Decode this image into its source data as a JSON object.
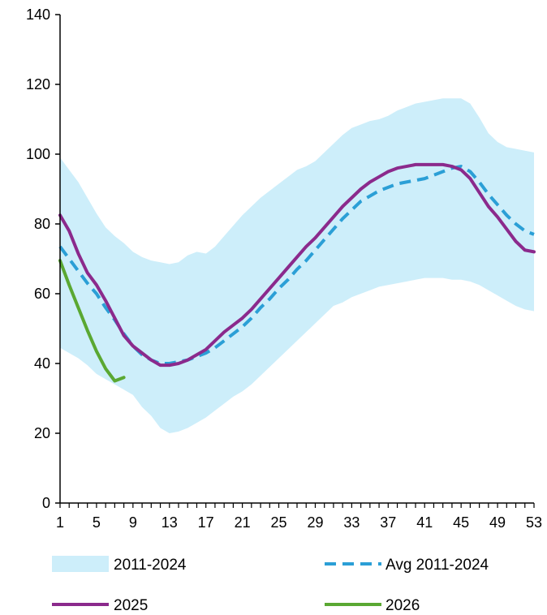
{
  "chart_data": {
    "type": "line",
    "title": "",
    "xlabel": "",
    "ylabel": "",
    "xlim": [
      1,
      53
    ],
    "ylim": [
      0,
      140
    ],
    "x_ticks": [
      "1",
      "5",
      "9",
      "13",
      "17",
      "21",
      "25",
      "29",
      "33",
      "37",
      "41",
      "45",
      "49",
      "53"
    ],
    "y_ticks": [
      "0",
      "20",
      "40",
      "60",
      "80",
      "100",
      "120",
      "140"
    ],
    "grid": false,
    "legend_position": "bottom",
    "band": {
      "name": "2011-2024",
      "color": "#cdeefa",
      "x": [
        1,
        2,
        3,
        4,
        5,
        6,
        7,
        8,
        9,
        10,
        11,
        12,
        13,
        14,
        15,
        16,
        17,
        18,
        19,
        20,
        21,
        22,
        23,
        24,
        25,
        26,
        27,
        28,
        29,
        30,
        31,
        32,
        33,
        34,
        35,
        36,
        37,
        38,
        39,
        40,
        41,
        42,
        43,
        44,
        45,
        46,
        47,
        48,
        49,
        50,
        51,
        52,
        53
      ],
      "upper": [
        99,
        95.5,
        92,
        87.5,
        83,
        79,
        76.5,
        74.5,
        72,
        70.5,
        69.5,
        69,
        68.5,
        69,
        71,
        72,
        71.5,
        73.5,
        76.5,
        79.5,
        82.5,
        85,
        87.5,
        89.5,
        91.5,
        93.5,
        95.5,
        96.5,
        98,
        100.5,
        103,
        105.5,
        107.5,
        108.5,
        109.5,
        110,
        111,
        112.5,
        113.5,
        114.5,
        115,
        115.5,
        116,
        116,
        116,
        114.5,
        110.5,
        106,
        103.5,
        102,
        101.5,
        101,
        100.5
      ],
      "lower": [
        44.5,
        43,
        41.5,
        39.5,
        37,
        35.5,
        34,
        32.5,
        31,
        27.5,
        25,
        21.5,
        20,
        20.5,
        21.5,
        23,
        24.5,
        26.5,
        28.5,
        30.5,
        32,
        34,
        36.5,
        39,
        41.5,
        44,
        46.5,
        49,
        51.5,
        54,
        56.5,
        57.5,
        59,
        60,
        61,
        62,
        62.5,
        63,
        63.5,
        64,
        64.5,
        64.5,
        64.5,
        64,
        64,
        63.5,
        62.5,
        61,
        59.5,
        58,
        56.5,
        55.5,
        55
      ]
    },
    "series": [
      {
        "name": "Avg 2011-2024",
        "color": "#2b9fd6",
        "style": "dashed",
        "x": [
          1,
          2,
          3,
          4,
          5,
          6,
          7,
          8,
          9,
          10,
          11,
          12,
          13,
          14,
          15,
          16,
          17,
          18,
          19,
          20,
          21,
          22,
          23,
          24,
          25,
          26,
          27,
          28,
          29,
          30,
          31,
          32,
          33,
          34,
          35,
          36,
          37,
          38,
          39,
          40,
          41,
          42,
          43,
          44,
          45,
          46,
          47,
          48,
          49,
          50,
          51,
          52,
          53
        ],
        "values": [
          73.5,
          70,
          66.5,
          63,
          60,
          56,
          52.5,
          48.5,
          45,
          42.5,
          41,
          40,
          40,
          40.5,
          41,
          42,
          43,
          44.5,
          46.5,
          48.5,
          50.5,
          53,
          56,
          58.5,
          61.5,
          64,
          67,
          69.5,
          72.5,
          75.5,
          78.5,
          81.5,
          84,
          86.5,
          88,
          89.5,
          90.5,
          91.5,
          92,
          92.5,
          93,
          94,
          95,
          96,
          96.5,
          95,
          92,
          88.5,
          85.5,
          82.5,
          80,
          78,
          77
        ]
      },
      {
        "name": "2025",
        "color": "#8b2a8c",
        "style": "solid",
        "x": [
          1,
          2,
          3,
          4,
          5,
          6,
          7,
          8,
          9,
          10,
          11,
          12,
          13,
          14,
          15,
          16,
          17,
          18,
          19,
          20,
          21,
          22,
          23,
          24,
          25,
          26,
          27,
          28,
          29,
          30,
          31,
          32,
          33,
          34,
          35,
          36,
          37,
          38,
          39,
          40,
          41,
          42,
          43,
          44,
          45,
          46,
          47,
          48,
          49,
          50,
          51,
          52,
          53
        ],
        "values": [
          82.5,
          78,
          71.5,
          66,
          62.5,
          58,
          53,
          48,
          45,
          43,
          41,
          39.5,
          39.5,
          40,
          41,
          42.5,
          44,
          46.5,
          49,
          51,
          53,
          55.5,
          58.5,
          61.5,
          64.5,
          67.5,
          70.5,
          73.5,
          76,
          79,
          82,
          85,
          87.5,
          90,
          92,
          93.5,
          95,
          96,
          96.5,
          97,
          97,
          97,
          97,
          96.5,
          95.5,
          93,
          89,
          85,
          82,
          78.5,
          75,
          72.5,
          72
        ]
      },
      {
        "name": "2026",
        "color": "#5aa832",
        "style": "solid",
        "x": [
          1,
          2,
          3,
          4,
          5,
          6,
          7,
          8
        ],
        "values": [
          69.5,
          62.5,
          56,
          49.5,
          43.5,
          38.5,
          35,
          36
        ]
      }
    ]
  }
}
